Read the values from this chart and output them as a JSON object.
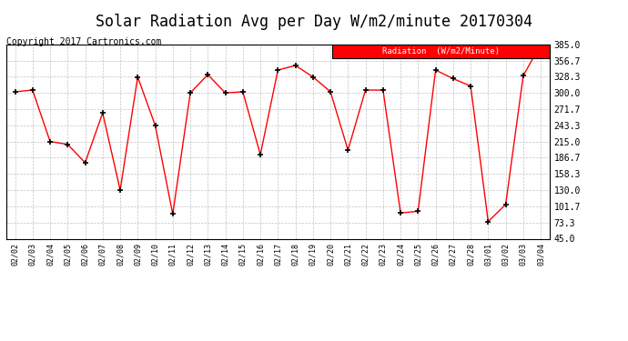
{
  "title": "Solar Radiation Avg per Day W/m2/minute 20170304",
  "copyright": "Copyright 2017 Cartronics.com",
  "legend_label": "Radiation  (W/m2/Minute)",
  "dates": [
    "02/02",
    "02/03",
    "02/04",
    "02/05",
    "02/06",
    "02/07",
    "02/08",
    "02/09",
    "02/10",
    "02/11",
    "02/12",
    "02/13",
    "02/14",
    "02/15",
    "02/16",
    "02/17",
    "02/18",
    "02/19",
    "02/20",
    "02/21",
    "02/22",
    "02/23",
    "02/24",
    "02/25",
    "02/26",
    "02/27",
    "02/28",
    "03/01",
    "03/02",
    "03/03",
    "03/04"
  ],
  "values": [
    302,
    305,
    215,
    210,
    178,
    265,
    130,
    328,
    243,
    88,
    300,
    332,
    300,
    302,
    192,
    340,
    348,
    328,
    302,
    200,
    305,
    305,
    90,
    93,
    340,
    325,
    312,
    75,
    105,
    330,
    385
  ],
  "line_color": "red",
  "marker": "+",
  "marker_color": "black",
  "bg_color": "white",
  "grid_color": "#aaaaaa",
  "ylim": [
    45.0,
    385.0
  ],
  "yticks": [
    45.0,
    73.3,
    101.7,
    130.0,
    158.3,
    186.7,
    215.0,
    243.3,
    271.7,
    300.0,
    328.3,
    356.7,
    385.0
  ],
  "title_fontsize": 12,
  "copyright_fontsize": 7,
  "legend_bg": "red",
  "legend_text_color": "white",
  "fig_width": 6.9,
  "fig_height": 3.75,
  "dpi": 100
}
